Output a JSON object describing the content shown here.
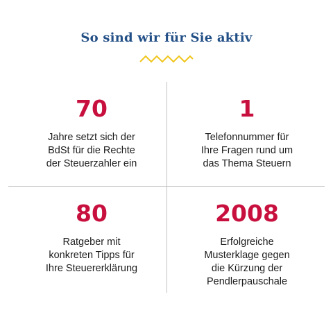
{
  "title": "So sind wir für Sie aktiv",
  "accent_colors": {
    "title": "#224f86",
    "numbers": "#c8103e",
    "zigzag": "#f0c419"
  },
  "decoration": "zigzag-divider",
  "stats": [
    {
      "number": "70",
      "line1": "Jahre setzt sich der",
      "line2": "BdSt für die Rechte",
      "line3": "der Steuerzahler ein"
    },
    {
      "number": "1",
      "line1": "Telefonnummer für",
      "line2": "Ihre Fragen rund um",
      "line3": "das Thema Steuern"
    },
    {
      "number": "80",
      "line1": "Ratgeber mit",
      "line2": "konkreten Tipps für",
      "line3": "Ihre Steuererklärung"
    },
    {
      "number": "2008",
      "line1": "Erfolgreiche",
      "line2": "Musterklage gegen",
      "line3": "die Kürzung der",
      "line4": "Pendlerpauschale"
    }
  ]
}
